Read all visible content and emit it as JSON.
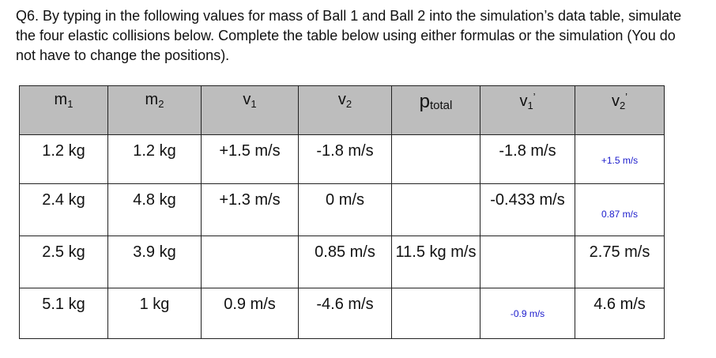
{
  "question": {
    "text": "Q6. By typing in the following values for mass of Ball 1 and Ball 2 into the simulation’s data table, simulate the four elastic collisions below. Complete the table below using either formulas or the simulation (You do not have to change the positions)."
  },
  "table": {
    "headers": {
      "m1": {
        "base": "m",
        "sub": "1"
      },
      "m2": {
        "base": "m",
        "sub": "2"
      },
      "v1": {
        "base": "v",
        "sub": "1"
      },
      "v2": {
        "base": "v",
        "sub": "2"
      },
      "ptotal": {
        "base": "p",
        "sub": "total"
      },
      "v1p": {
        "base": "v",
        "sub": "1",
        "sup": "’"
      },
      "v2p": {
        "base": "v",
        "sub": "2",
        "sup": "’"
      }
    },
    "rows": [
      {
        "m1": "1.2 kg",
        "m2": "1.2 kg",
        "v1": "+1.5 m/s",
        "v2": "-1.8 m/s",
        "ptotal": "",
        "v1p": "-1.8 m/s",
        "v2p": "",
        "v2p_answer": "+1.5 m/s"
      },
      {
        "m1": "2.4 kg",
        "m2": "4.8 kg",
        "v1": "+1.3 m/s",
        "v2": "0 m/s",
        "ptotal": "",
        "v1p": "-0.433 m/s",
        "v2p": "",
        "v2p_answer": "0.87 m/s"
      },
      {
        "m1": "2.5 kg",
        "m2": "3.9 kg",
        "v1": "",
        "v2": "0.85 m/s",
        "ptotal": "11.5 kg m/s",
        "v1p": "",
        "v2p": "2.75 m/s"
      },
      {
        "m1": "5.1 kg",
        "m2": "1 kg",
        "v1": "0.9 m/s",
        "v2": "-4.6 m/s",
        "ptotal": "",
        "v1p": "",
        "v1p_answer": "-0.9 m/s",
        "v2p": "4.6 m/s"
      }
    ],
    "answer_color": "#1a1acc",
    "header_background": "#bdbdbd"
  }
}
